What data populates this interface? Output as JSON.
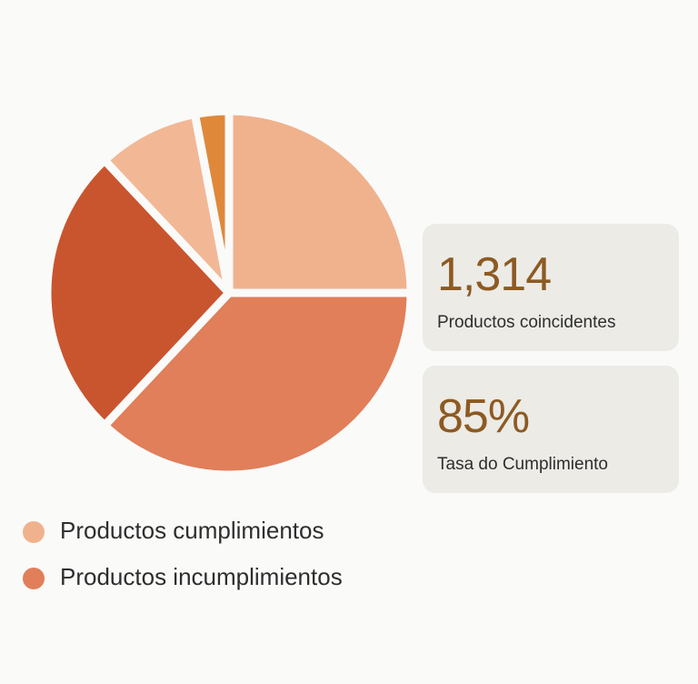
{
  "chart_data": {
    "type": "pie",
    "categories": [
      "Productos cumplimientos",
      "Productos incumplimientos",
      null,
      null,
      null
    ],
    "values": [
      25,
      37,
      26,
      9,
      3
    ],
    "colors": [
      "#f0b28d",
      "#e07f5a",
      "#c9552f",
      "#f2b896",
      "#e0883a"
    ]
  },
  "stats": [
    {
      "value": "1,314",
      "label": "Productos coincidentes"
    },
    {
      "value": "85%",
      "label": "Tasa do Cumplimiento"
    }
  ]
}
